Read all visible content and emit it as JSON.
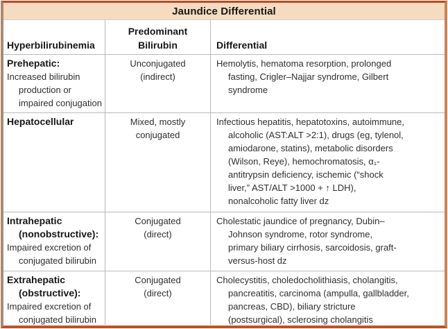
{
  "title": "Jaundice Differential",
  "headers": {
    "col1": "Hyperbilirubinemia",
    "col2": "Predominant\nBilirubin",
    "col3": "Differential"
  },
  "rows": [
    {
      "category": "Prehepatic:",
      "description": "Increased bilirubin\nproduction or\nimpaired conjugation",
      "bilirubin": "Unconjugated\n(indirect)",
      "differential": "Hemolytis, hematoma resorption, prolonged\nfasting, Crigler–Najjar syndrome, Gilbert\nsyndrome"
    },
    {
      "category": "Hepatocellular",
      "description": "",
      "bilirubin": "Mixed, mostly\nconjugated",
      "differential": "Infectious hepatitis, hepatotoxins, autoimmune,\nalcoholic (AST:ALT >2:1), drugs (eg, tylenol,\namiodarone, statins), metabolic disorders\n(Wilson, Reye), hemochromatosis, α₁-\nantitrypsin deficiency, ischemic (“shock\nliver,” AST/ALT >1000 + ↑ LDH),\nnonalcoholic fatty liver dz"
    },
    {
      "category": "Intrahepatic\n(nonobstructive):",
      "description": "Impaired excretion of\nconjugated bilirubin",
      "bilirubin": "Conjugated\n(direct)",
      "differential": "Cholestatic jaundice of pregnancy, Dubin–\nJohnson syndrome, rotor syndrome,\nprimary biliary cirrhosis, sarcoidosis, graft-\nversus-host dz"
    },
    {
      "category": "Extrahepatic\n(obstructive):",
      "description": "Impaired excretion of\nconjugated bilirubin",
      "bilirubin": "Conjugated\n(direct)",
      "differential": "Cholecystitis, choledocholithiasis, cholangitis,\npancreatitis, carcinoma (ampulla, gallbladder,\npancreas, CBD), biliary stricture\n(postsurgical), sclerosing cholangitis"
    }
  ],
  "colors": {
    "title_bg": "#f5dcc0",
    "border_top": "#b94a24",
    "border_bottom": "#c44f28",
    "border_left": "#ab8a72",
    "border_right": "#c98457",
    "grid_line": "#b9b9b9",
    "text": "#2e2e2e",
    "heading_text": "#161616"
  }
}
